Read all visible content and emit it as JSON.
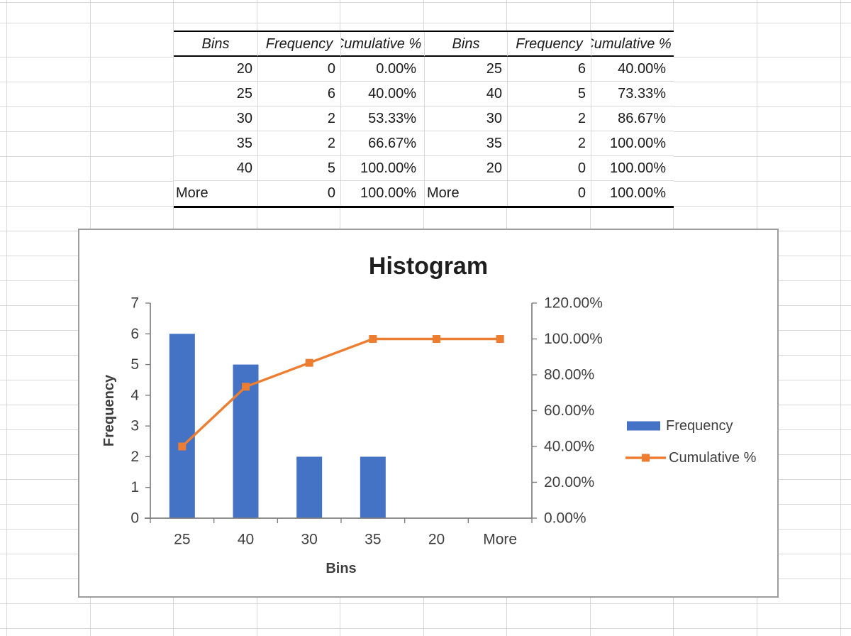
{
  "colors": {
    "bar_fill": "#4472C4",
    "line_stroke": "#ED7D31",
    "axis_line": "#7f7f7f",
    "tick_text": "#3f3f3f",
    "title_text": "#1f1f1f",
    "table_text": "#1a1a1a",
    "grid_line": "#d9d9d9",
    "chart_border": "#9d9d9d"
  },
  "tables": {
    "left": {
      "headers": [
        "Bins",
        "Frequency",
        "Cumulative %"
      ],
      "rows": [
        [
          "20",
          "0",
          "0.00%"
        ],
        [
          "25",
          "6",
          "40.00%"
        ],
        [
          "30",
          "2",
          "53.33%"
        ],
        [
          "35",
          "2",
          "66.67%"
        ],
        [
          "40",
          "5",
          "100.00%"
        ],
        [
          "More",
          "0",
          "100.00%"
        ]
      ]
    },
    "right": {
      "headers": [
        "Bins",
        "Frequency",
        "Cumulative %"
      ],
      "rows": [
        [
          "25",
          "6",
          "40.00%"
        ],
        [
          "40",
          "5",
          "73.33%"
        ],
        [
          "30",
          "2",
          "86.67%"
        ],
        [
          "35",
          "2",
          "100.00%"
        ],
        [
          "20",
          "0",
          "100.00%"
        ],
        [
          "More",
          "0",
          "100.00%"
        ]
      ]
    }
  },
  "chart_data": {
    "type": "bar",
    "subtype": "pareto-combo",
    "title": "Histogram",
    "xlabel": "Bins",
    "ylabel": "Frequency",
    "categories": [
      "25",
      "40",
      "30",
      "35",
      "20",
      "More"
    ],
    "series": [
      {
        "name": "Frequency",
        "type": "bar",
        "axis": "left",
        "values": [
          6,
          5,
          2,
          2,
          0,
          0
        ]
      },
      {
        "name": "Cumulative %",
        "type": "line",
        "axis": "right",
        "values": [
          40,
          73.33,
          86.67,
          100,
          100,
          100
        ]
      }
    ],
    "y_left": {
      "min": 0,
      "max": 7,
      "tick_step": 1,
      "tick_labels": [
        "0",
        "1",
        "2",
        "3",
        "4",
        "5",
        "6",
        "7"
      ]
    },
    "y_right": {
      "min": 0,
      "max": 120,
      "tick_step": 20,
      "tick_labels": [
        "0.00%",
        "20.00%",
        "40.00%",
        "60.00%",
        "80.00%",
        "100.00%",
        "120.00%"
      ]
    },
    "grid": "off",
    "legend": {
      "position": "right",
      "entries": [
        "Frequency",
        "Cumulative %"
      ]
    }
  }
}
